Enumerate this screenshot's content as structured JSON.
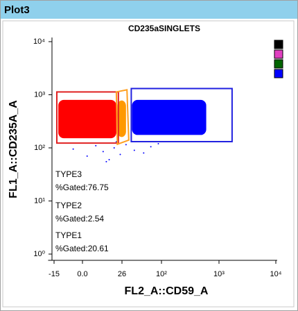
{
  "window_title": "Plot3",
  "chart_data": {
    "type": "scatter",
    "title": "CD235aSINGLETS",
    "x_label": "FL2_A::CD59_A",
    "y_label": "FL1_A::CD235A_A",
    "xlim": [
      -20,
      10000
    ],
    "ylim": [
      1,
      10000
    ],
    "ylog": true,
    "xticks": [
      -15,
      {
        "value": 0,
        "label": "0.0"
      },
      26,
      {
        "value": 100,
        "label": "10²"
      },
      {
        "value": 1000,
        "label": "10³"
      },
      {
        "value": 10000,
        "label": "10⁴"
      }
    ],
    "yticks": [
      {
        "value": 1,
        "label": "10⁰"
      },
      {
        "value": 10,
        "label": "10¹"
      },
      {
        "value": 100,
        "label": "10²"
      },
      {
        "value": 1000,
        "label": "10³"
      },
      {
        "value": 10000,
        "label": "10⁴"
      }
    ],
    "populations": [
      {
        "color": "#ff0000",
        "x": [
          -12,
          20
        ],
        "y": [
          152,
          800
        ]
      },
      {
        "color": "#ff9900",
        "x": [
          21,
          30
        ],
        "y": [
          160,
          780
        ]
      },
      {
        "color": "#0000ff",
        "x": [
          37,
          600
        ],
        "y": [
          175,
          800
        ]
      }
    ],
    "series": [
      {
        "color": "#0000ff",
        "x": [
          -4,
          2,
          6,
          10,
          14,
          18,
          24,
          30,
          40,
          55,
          70,
          90,
          12,
          20
        ],
        "y": [
          95,
          70,
          110,
          85,
          60,
          100,
          75,
          115,
          90,
          80,
          105,
          120,
          55,
          130
        ]
      }
    ],
    "gates": [
      {
        "label": "TYPE1",
        "stat": "%Gated:20.61",
        "color": "#e02020",
        "shape": "rect",
        "x": [
          -13,
          22
        ],
        "y": [
          123,
          1130
        ]
      },
      {
        "label": "TYPE2",
        "stat": "%Gated:2.54",
        "color": "#ffa020",
        "shape": "polygon",
        "x": [
          20,
          31,
          33,
          21
        ],
        "y": [
          1130,
          1240,
          140,
          117
        ]
      },
      {
        "label": "TYPE3",
        "stat": "%Gated:76.75",
        "color": "#2020e0",
        "shape": "rect",
        "x": [
          36,
          1700
        ],
        "y": [
          131,
          1310
        ]
      }
    ],
    "legend_colors": [
      "#000000",
      "#e040c0",
      "#006400",
      "#0000ff"
    ]
  }
}
